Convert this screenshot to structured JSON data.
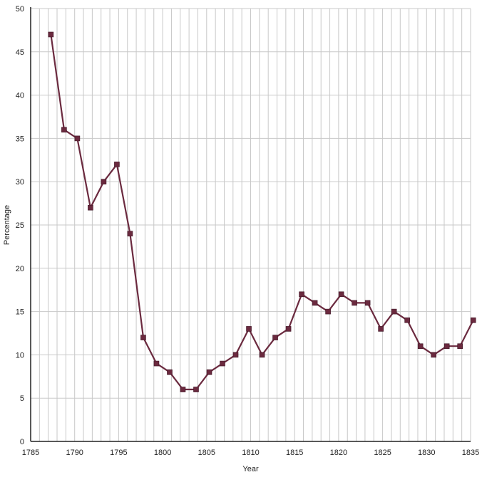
{
  "chart_data": {
    "type": "line",
    "xlabel": "Year",
    "ylabel": "Percentage",
    "xlim": [
      1785,
      1835
    ],
    "ylim": [
      0,
      50
    ],
    "x_ticks": [
      1785,
      1790,
      1795,
      1800,
      1805,
      1810,
      1815,
      1820,
      1825,
      1830,
      1835
    ],
    "y_ticks": [
      0,
      5,
      10,
      15,
      20,
      25,
      30,
      35,
      40,
      45,
      50
    ],
    "grid": true,
    "legend": "none",
    "series": [
      {
        "color": "#6b2a3f",
        "marker": "square",
        "x": [
          1787.3,
          1788.8,
          1790.3,
          1791.8,
          1793.3,
          1794.8,
          1796.3,
          1797.8,
          1799.3,
          1800.8,
          1802.3,
          1803.8,
          1805.3,
          1806.8,
          1808.3,
          1809.8,
          1811.3,
          1812.8,
          1814.3,
          1815.8,
          1817.3,
          1818.8,
          1820.3,
          1821.8,
          1823.3,
          1824.8,
          1826.3,
          1827.8,
          1829.3,
          1830.8,
          1832.3,
          1833.8,
          1835.3
        ],
        "y": [
          47,
          36,
          35,
          27,
          30,
          32,
          24,
          12,
          9,
          8,
          6,
          6,
          8,
          9,
          10,
          13,
          10,
          12,
          13,
          17,
          16,
          15,
          17,
          16,
          16,
          13,
          15,
          14,
          11,
          10,
          11,
          11,
          14
        ]
      }
    ]
  }
}
